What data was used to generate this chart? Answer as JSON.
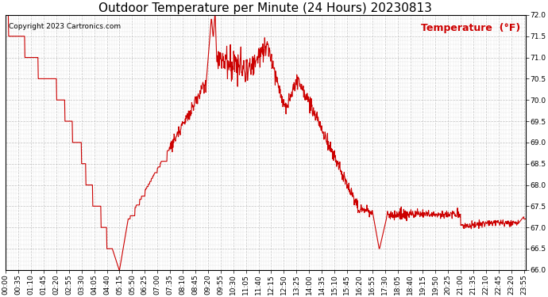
{
  "title": "Outdoor Temperature per Minute (24 Hours) 20230813",
  "copyright_text": "Copyright 2023 Cartronics.com",
  "legend_label": "Temperature  (°F)",
  "line_color": "#cc0000",
  "background_color": "#ffffff",
  "grid_color": "#bbbbbb",
  "ylim": [
    66.0,
    72.0
  ],
  "ytick_step": 0.5,
  "title_fontsize": 11,
  "label_fontsize": 6.5,
  "copyright_fontsize": 6.5,
  "legend_fontsize": 9
}
